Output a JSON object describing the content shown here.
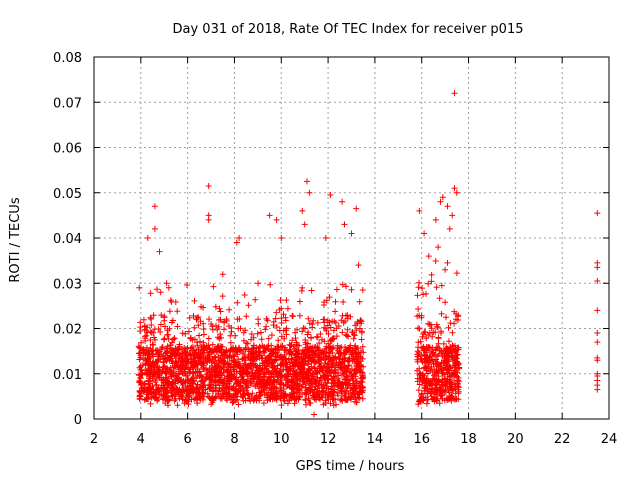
{
  "chart_data": {
    "type": "scatter",
    "title": "Day 031 of 2018, Rate Of TEC Index for receiver p015",
    "xlabel": "GPS time / hours",
    "ylabel": "ROTI / TECUs",
    "xlim": [
      2,
      24
    ],
    "ylim": [
      0,
      0.08
    ],
    "x_ticks": [
      2,
      4,
      6,
      8,
      10,
      12,
      14,
      16,
      18,
      20,
      22,
      24
    ],
    "y_ticks": [
      0,
      0.01,
      0.02,
      0.03,
      0.04,
      0.05,
      0.06,
      0.07,
      0.08
    ],
    "x_tick_labels": [
      "2",
      "4",
      "6",
      "8",
      "10",
      "12",
      "14",
      "16",
      "18",
      "20",
      "22",
      "24"
    ],
    "y_tick_labels": [
      "0",
      "0.01",
      "0.02",
      "0.03",
      "0.04",
      "0.05",
      "0.06",
      "0.07",
      "0.08"
    ],
    "grid": true,
    "marker": "+",
    "color": "#ff0000",
    "series": [
      {
        "name": "ROTI",
        "segments": [
          {
            "x_start": 3.9,
            "x_end": 13.5,
            "y_min": 0.002,
            "y_typical_max": 0.03,
            "note": "dense band"
          },
          {
            "x_start": 15.8,
            "x_end": 17.6,
            "y_min": 0.003,
            "y_typical_max": 0.035,
            "note": "dense band"
          },
          {
            "x_start": 23.4,
            "x_end": 23.6,
            "y_min": 0.006,
            "y_typical_max": 0.035,
            "note": "sparse"
          }
        ],
        "points": [
          [
            4.6,
            0.047
          ],
          [
            4.6,
            0.042
          ],
          [
            4.3,
            0.04
          ],
          [
            4.8,
            0.037
          ],
          [
            5.1,
            0.03
          ],
          [
            6.9,
            0.0515
          ],
          [
            6.9,
            0.045
          ],
          [
            6.9,
            0.044
          ],
          [
            7.5,
            0.032
          ],
          [
            8.1,
            0.039
          ],
          [
            8.2,
            0.04
          ],
          [
            9.5,
            0.045
          ],
          [
            9.8,
            0.044
          ],
          [
            10.0,
            0.04
          ],
          [
            10.9,
            0.046
          ],
          [
            11.0,
            0.043
          ],
          [
            11.1,
            0.0525
          ],
          [
            11.2,
            0.05
          ],
          [
            12.1,
            0.0495
          ],
          [
            11.9,
            0.04
          ],
          [
            12.6,
            0.048
          ],
          [
            12.7,
            0.043
          ],
          [
            13.2,
            0.0465
          ],
          [
            13.0,
            0.041
          ],
          [
            13.3,
            0.034
          ],
          [
            11.4,
            0.001
          ],
          [
            15.9,
            0.046
          ],
          [
            16.1,
            0.041
          ],
          [
            16.3,
            0.036
          ],
          [
            16.6,
            0.044
          ],
          [
            16.8,
            0.048
          ],
          [
            16.9,
            0.049
          ],
          [
            17.1,
            0.047
          ],
          [
            17.4,
            0.072
          ],
          [
            17.4,
            0.051
          ],
          [
            17.5,
            0.05
          ],
          [
            17.3,
            0.045
          ],
          [
            17.2,
            0.042
          ],
          [
            16.7,
            0.038
          ],
          [
            17.0,
            0.033
          ],
          [
            23.5,
            0.0455
          ],
          [
            23.5,
            0.0345
          ],
          [
            23.5,
            0.0335
          ],
          [
            23.5,
            0.0305
          ],
          [
            23.5,
            0.024
          ],
          [
            23.5,
            0.019
          ],
          [
            23.5,
            0.017
          ],
          [
            23.5,
            0.0135
          ],
          [
            23.5,
            0.013
          ],
          [
            23.5,
            0.01
          ],
          [
            23.5,
            0.0095
          ],
          [
            23.5,
            0.0085
          ],
          [
            23.5,
            0.0075
          ],
          [
            23.5,
            0.0065
          ]
        ]
      }
    ]
  }
}
